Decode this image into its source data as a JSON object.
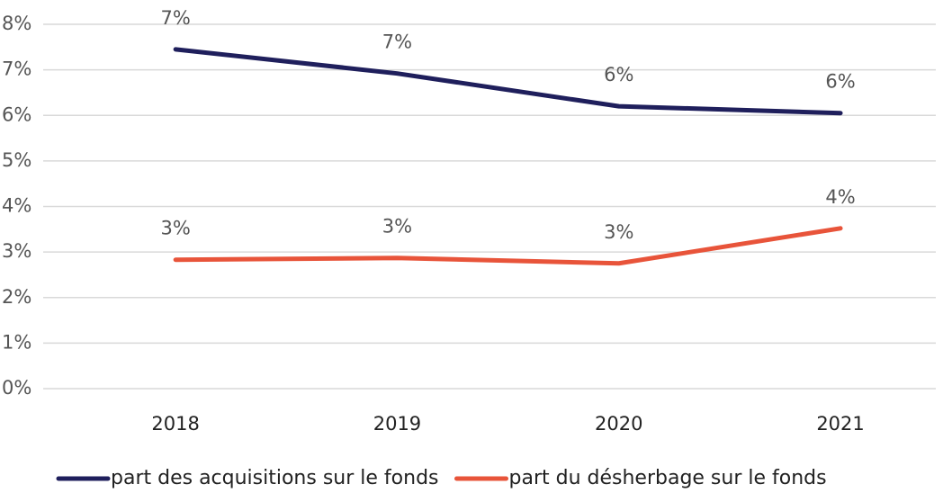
{
  "chart_data": {
    "type": "line",
    "categories": [
      "2018",
      "2019",
      "2020",
      "2021"
    ],
    "series": [
      {
        "name": "part des acquisitions sur le fonds",
        "color": "#1f1f5c",
        "values": [
          7.45,
          6.92,
          6.2,
          6.05
        ],
        "value_labels": [
          "7%",
          "7%",
          "6%",
          "6%"
        ]
      },
      {
        "name": "part du désherbage sur le fonds",
        "color": "#e8543a",
        "values": [
          2.83,
          2.87,
          2.75,
          3.52
        ],
        "value_labels": [
          "3%",
          "3%",
          "3%",
          "4%"
        ]
      }
    ],
    "ylim": [
      0,
      8
    ],
    "yticks": [
      {
        "value": 0,
        "label": "0%"
      },
      {
        "value": 1,
        "label": "1%"
      },
      {
        "value": 2,
        "label": "2%"
      },
      {
        "value": 3,
        "label": "3%"
      },
      {
        "value": 4,
        "label": "4%"
      },
      {
        "value": 5,
        "label": "5%"
      },
      {
        "value": 6,
        "label": "6%"
      },
      {
        "value": 7,
        "label": "7%"
      },
      {
        "value": 8,
        "label": "8%"
      }
    ],
    "grid": true,
    "legend": "bottom"
  }
}
